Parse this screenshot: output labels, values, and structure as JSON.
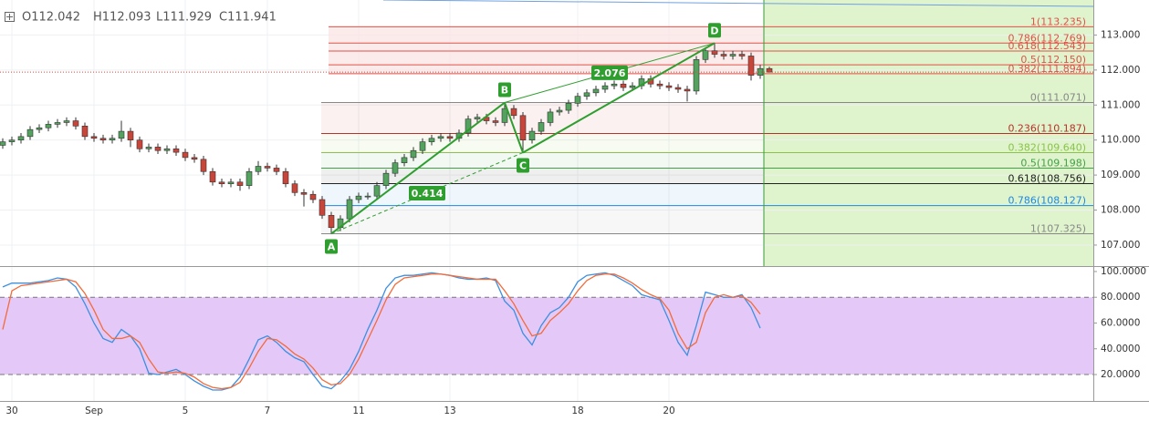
{
  "chart_data": [
    {
      "type": "candlestick",
      "ohlc_legend": [
        "O112.042",
        "H112.093",
        "L111.929",
        "C111.941"
      ],
      "up_color": "#53a35f",
      "down_color": "#c8453a",
      "outline_color": "#333333",
      "categories": [
        null,
        "30",
        null,
        null,
        null,
        null,
        null,
        null,
        null,
        null,
        "Sep",
        null,
        null,
        null,
        null,
        null,
        null,
        null,
        null,
        null,
        "5",
        null,
        null,
        null,
        null,
        null,
        null,
        null,
        null,
        "7",
        null,
        null,
        null,
        null,
        null,
        null,
        null,
        null,
        null,
        "11",
        null,
        null,
        null,
        null,
        null,
        null,
        null,
        null,
        null,
        "13",
        null,
        null,
        null,
        null,
        null,
        null,
        null,
        null,
        null,
        null,
        null,
        null,
        null,
        "18",
        null,
        null,
        null,
        null,
        null,
        null,
        null,
        null,
        null,
        "20",
        null,
        null,
        null,
        null,
        null,
        null,
        null,
        null,
        null,
        null,
        null
      ],
      "open": [
        109.85,
        109.95,
        110.0,
        110.1,
        110.3,
        110.35,
        110.45,
        110.5,
        110.55,
        110.4,
        110.1,
        110.05,
        110.0,
        110.05,
        110.25,
        110.0,
        109.75,
        109.8,
        109.7,
        109.75,
        109.65,
        109.5,
        109.45,
        109.1,
        108.8,
        108.75,
        108.8,
        108.7,
        109.1,
        109.25,
        109.2,
        109.1,
        108.75,
        108.5,
        108.45,
        108.3,
        107.85,
        107.5,
        107.75,
        108.3,
        108.4,
        108.4,
        108.7,
        109.05,
        109.35,
        109.5,
        109.7,
        109.95,
        110.05,
        110.1,
        110.05,
        110.2,
        110.6,
        110.65,
        110.55,
        110.5,
        110.9,
        110.7,
        110.0,
        110.25,
        110.5,
        110.8,
        110.85,
        111.05,
        111.25,
        111.35,
        111.45,
        111.55,
        111.6,
        111.5,
        111.55,
        111.75,
        111.6,
        111.55,
        111.5,
        111.45,
        111.4,
        112.3,
        112.55,
        112.45,
        112.4,
        112.45,
        112.4,
        111.85,
        112.042
      ],
      "high": [
        110.05,
        110.1,
        110.2,
        110.4,
        110.45,
        110.55,
        110.6,
        110.65,
        110.65,
        110.5,
        110.2,
        110.15,
        110.15,
        110.55,
        110.35,
        110.1,
        109.9,
        109.9,
        109.85,
        109.85,
        109.75,
        109.6,
        109.55,
        109.2,
        108.9,
        108.9,
        108.9,
        109.2,
        109.4,
        109.35,
        109.3,
        109.2,
        108.85,
        108.6,
        108.55,
        108.4,
        107.95,
        107.85,
        108.4,
        108.5,
        108.5,
        108.8,
        109.15,
        109.45,
        109.6,
        109.8,
        110.05,
        110.15,
        110.2,
        110.2,
        110.3,
        110.7,
        110.75,
        110.75,
        110.65,
        111.071,
        111.0,
        110.8,
        110.35,
        110.6,
        110.9,
        110.95,
        111.15,
        111.35,
        111.45,
        111.55,
        111.65,
        111.7,
        111.7,
        111.65,
        111.85,
        111.85,
        111.7,
        111.65,
        111.6,
        111.55,
        112.4,
        112.65,
        112.769,
        112.55,
        112.55,
        112.55,
        112.5,
        112.15,
        112.093
      ],
      "low": [
        109.75,
        109.85,
        109.9,
        110.0,
        110.2,
        110.25,
        110.35,
        110.4,
        110.3,
        110.0,
        109.95,
        109.9,
        109.9,
        109.95,
        109.8,
        109.65,
        109.65,
        109.6,
        109.6,
        109.55,
        109.4,
        109.35,
        109.0,
        108.7,
        108.65,
        108.65,
        108.55,
        108.6,
        109.0,
        109.1,
        109.0,
        108.65,
        108.4,
        108.1,
        108.2,
        107.75,
        107.325,
        107.4,
        107.65,
        108.2,
        108.3,
        108.3,
        108.6,
        108.95,
        109.25,
        109.4,
        109.6,
        109.85,
        109.95,
        109.95,
        109.95,
        110.1,
        110.5,
        110.45,
        110.4,
        110.4,
        110.6,
        109.64,
        109.9,
        110.15,
        110.4,
        110.7,
        110.75,
        110.95,
        111.15,
        111.25,
        111.35,
        111.45,
        111.4,
        111.4,
        111.45,
        111.5,
        111.45,
        111.4,
        111.35,
        111.1,
        111.3,
        112.2,
        112.35,
        112.3,
        112.3,
        112.3,
        111.7,
        111.75,
        111.929
      ],
      "close": [
        109.95,
        110.0,
        110.1,
        110.3,
        110.35,
        110.45,
        110.5,
        110.55,
        110.4,
        110.1,
        110.05,
        110.0,
        110.05,
        110.25,
        110.0,
        109.75,
        109.8,
        109.7,
        109.75,
        109.65,
        109.5,
        109.45,
        109.1,
        108.8,
        108.75,
        108.8,
        108.7,
        109.1,
        109.25,
        109.2,
        109.1,
        108.75,
        108.5,
        108.45,
        108.3,
        107.85,
        107.5,
        107.75,
        108.3,
        108.4,
        108.4,
        108.7,
        109.05,
        109.35,
        109.5,
        109.7,
        109.95,
        110.05,
        110.1,
        110.05,
        110.2,
        110.6,
        110.65,
        110.55,
        110.5,
        110.9,
        110.7,
        110.0,
        110.25,
        110.5,
        110.8,
        110.85,
        111.05,
        111.25,
        111.35,
        111.45,
        111.55,
        111.6,
        111.5,
        111.55,
        111.75,
        111.6,
        111.55,
        111.5,
        111.45,
        111.4,
        112.3,
        112.55,
        112.45,
        112.4,
        112.45,
        112.4,
        111.85,
        112.042,
        111.941
      ],
      "ylim": [
        106.4,
        114.0
      ],
      "yticks": [
        {
          "value": 107,
          "label": "107.000"
        },
        {
          "value": 108,
          "label": "108.000"
        },
        {
          "value": 109,
          "label": "109.000"
        },
        {
          "value": 110,
          "label": "110.000"
        },
        {
          "value": 111,
          "label": "111.000"
        },
        {
          "value": 112,
          "label": "112.000"
        },
        {
          "value": 113,
          "label": "113.000"
        }
      ],
      "grid": true,
      "fib_upper": [
        {
          "value": 113.235,
          "label": "1(113.235)",
          "color": "#e0524a"
        },
        {
          "value": 112.769,
          "label": "0.786(112.769)",
          "color": "#e0524a"
        },
        {
          "value": 112.543,
          "label": "0.618(112.543)",
          "color": "#e0524a"
        },
        {
          "value": 112.15,
          "label": "0.5(112.150)",
          "color": "#e0524a"
        },
        {
          "value": 111.894,
          "label": "0.382(111.894)",
          "color": "#e0524a"
        }
      ],
      "fib_lower": [
        {
          "value": 111.071,
          "label": "0(111.071)",
          "color": "#888888"
        },
        {
          "value": 110.187,
          "label": "0.236(110.187)",
          "color": "#b8322a"
        },
        {
          "value": 109.64,
          "label": "0.382(109.640)",
          "color": "#8bc34a"
        },
        {
          "value": 109.198,
          "label": "0.5(109.198)",
          "color": "#43a047"
        },
        {
          "value": 108.756,
          "label": "0.618(108.756)",
          "color": "#222222"
        },
        {
          "value": 108.127,
          "label": "0.786(108.127)",
          "color": "#1e88e5"
        },
        {
          "value": 107.325,
          "label": "1(107.325)",
          "color": "#888888"
        }
      ],
      "pattern": {
        "color": "#2e9e2e",
        "points": [
          {
            "label": "A",
            "x": 36,
            "y": 107.325
          },
          {
            "label": "B",
            "x": 55,
            "y": 111.071
          },
          {
            "label": "C",
            "x": 57,
            "y": 109.64
          },
          {
            "label": "D",
            "x": 78,
            "y": 112.769
          }
        ],
        "ratios": [
          "0.414",
          "2.076"
        ]
      }
    },
    {
      "type": "line",
      "ylim": [
        -0.5,
        103.5
      ],
      "yticks": [
        {
          "value": 20,
          "label": "20.0000"
        },
        {
          "value": 40,
          "label": "40.0000"
        },
        {
          "value": 60,
          "label": "60.0000"
        },
        {
          "value": 80,
          "label": "80.0000"
        },
        {
          "value": 100,
          "label": "100.0000"
        }
      ],
      "band": [
        20,
        80
      ],
      "band_color": "#e4c9f8",
      "series": [
        {
          "color": "#3d8fe0",
          "values": [
            88,
            91,
            91,
            91,
            92,
            93,
            95,
            94,
            88,
            75,
            60,
            48,
            45,
            55,
            50,
            40,
            21,
            20,
            22,
            24,
            20,
            15,
            11,
            8,
            8,
            10,
            18,
            32,
            47,
            50,
            45,
            38,
            33,
            30,
            20,
            11,
            9,
            15,
            24,
            38,
            55,
            70,
            87,
            95,
            97,
            97,
            98,
            99,
            98,
            97,
            95,
            94,
            94,
            95,
            93,
            77,
            70,
            52,
            43,
            58,
            68,
            72,
            80,
            92,
            97,
            98,
            99,
            97,
            93,
            89,
            82,
            80,
            78,
            62,
            45,
            35,
            58,
            84,
            82,
            80,
            80,
            82,
            72,
            56,
            null
          ]
        },
        {
          "color": "#f26b3a",
          "values": [
            55,
            85,
            89,
            90,
            91,
            92,
            93,
            94,
            92,
            83,
            70,
            55,
            48,
            48,
            50,
            45,
            32,
            22,
            21,
            22,
            21,
            18,
            13,
            10,
            9,
            10,
            14,
            25,
            38,
            48,
            47,
            42,
            36,
            32,
            25,
            16,
            12,
            13,
            20,
            32,
            47,
            62,
            78,
            90,
            95,
            96,
            97,
            98,
            98,
            97,
            96,
            95,
            94,
            94,
            94,
            85,
            75,
            62,
            50,
            52,
            62,
            68,
            75,
            85,
            93,
            97,
            98,
            98,
            95,
            91,
            86,
            82,
            79,
            70,
            52,
            40,
            45,
            68,
            80,
            82,
            80,
            81,
            76,
            67,
            null
          ]
        }
      ]
    }
  ]
}
